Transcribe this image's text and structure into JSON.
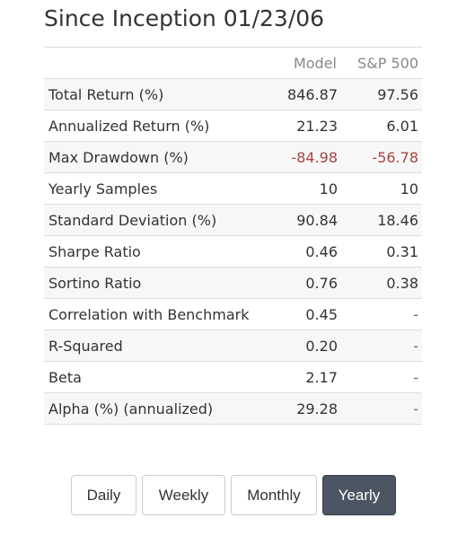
{
  "title": "Since Inception 01/23/06",
  "table": {
    "columns": [
      "",
      "Model",
      "S&P 500"
    ],
    "rows": [
      {
        "label": "Total Return (%)",
        "model": "846.87",
        "sp500": "97.56"
      },
      {
        "label": "Annualized Return (%)",
        "model": "21.23",
        "sp500": "6.01"
      },
      {
        "label": "Max Drawdown (%)",
        "model": "-84.98",
        "sp500": "-56.78"
      },
      {
        "label": "Yearly Samples",
        "model": "10",
        "sp500": "10"
      },
      {
        "label": "Standard Deviation (%)",
        "model": "90.84",
        "sp500": "18.46"
      },
      {
        "label": "Sharpe Ratio",
        "model": "0.46",
        "sp500": "0.31"
      },
      {
        "label": "Sortino Ratio",
        "model": "0.76",
        "sp500": "0.38"
      },
      {
        "label": "Correlation with Benchmark",
        "model": "0.45",
        "sp500": "-"
      },
      {
        "label": "R-Squared",
        "model": "0.20",
        "sp500": "-"
      },
      {
        "label": "Beta",
        "model": "2.17",
        "sp500": "-"
      },
      {
        "label": "Alpha (%) (annualized)",
        "model": "29.28",
        "sp500": "-"
      }
    ]
  },
  "periods": {
    "options": [
      "Daily",
      "Weekly",
      "Monthly",
      "Yearly"
    ],
    "selected": "Yearly"
  },
  "colors": {
    "negative": "#a94442",
    "active_button": "#4b5563",
    "row_stripe": "#f7f7f7"
  }
}
